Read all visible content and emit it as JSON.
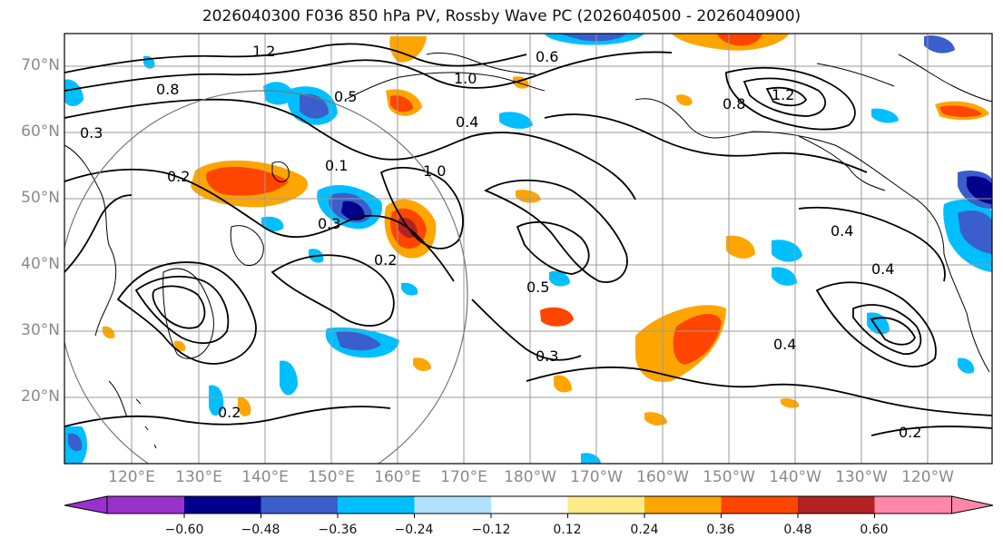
{
  "title": "2026040300 F036 850 hPa PV, Rossby Wave PC (2026040500 - 2026040900)",
  "lat_labels": [
    "70°N",
    "60°N",
    "50°N",
    "40°N",
    "30°N",
    "20°N"
  ],
  "lon_labels": [
    "120°E",
    "130°E",
    "140°E",
    "150°E",
    "160°E",
    "170°E",
    "180°W",
    "170°W",
    "160°W",
    "150°W",
    "140°W",
    "130°W",
    "120°W"
  ],
  "colorbar": {
    "ticks": [
      "−0.60",
      "−0.48",
      "−0.36",
      "−0.24",
      "−0.12",
      "0.12",
      "0.24",
      "0.36",
      "0.48",
      "0.60"
    ],
    "colors": [
      "#9932cc",
      "#00008b",
      "#3a5fcd",
      "#00bfff",
      "#b0e2ff",
      "#ffffff",
      "#ffeb8a",
      "#ffa500",
      "#ff4500",
      "#b22222",
      "#ff88aa"
    ]
  },
  "contour_labels": [
    "1.2",
    "1.0",
    "0.8",
    "0.6",
    "0.5",
    "0.4",
    "0.3",
    "0.2",
    "0.1",
    "1.0",
    "0.8",
    "1.2",
    "0.4",
    "0.3",
    "0.2",
    "0.4",
    "0.3",
    "0.2",
    "0.5",
    "0.4",
    "0.2"
  ],
  "colors": {
    "coast": "#000000",
    "contour": "#000000",
    "grid": "#9a9a9a",
    "circle": "#777777"
  }
}
